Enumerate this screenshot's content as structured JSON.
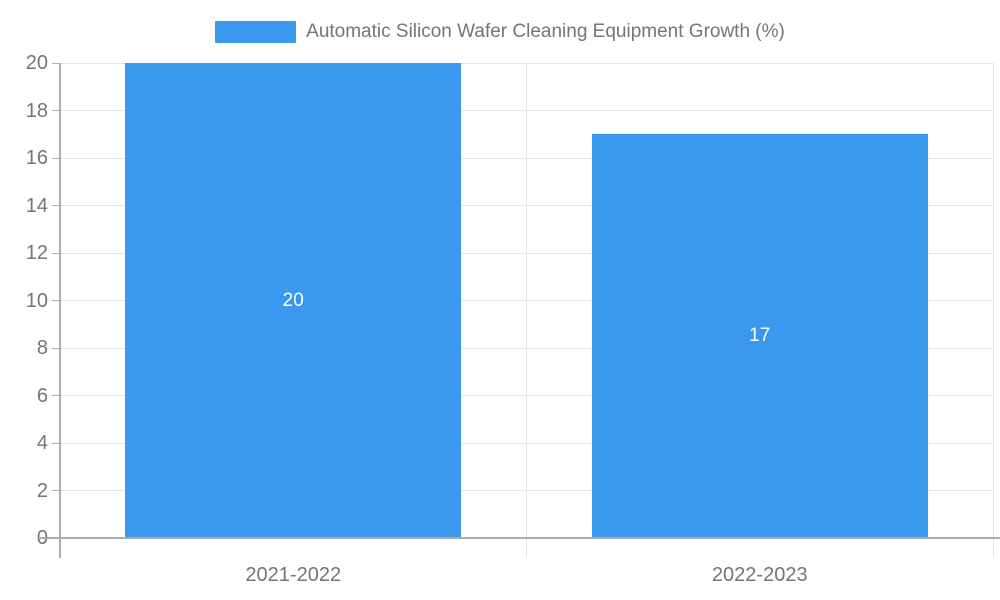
{
  "legend": {
    "label": "Automatic Silicon Wafer Cleaning Equipment Growth (%)"
  },
  "chart_data": {
    "type": "bar",
    "title": "Automatic Silicon Wafer Cleaning Equipment Growth (%)",
    "categories": [
      "2021-2022",
      "2022-2023"
    ],
    "values": [
      20,
      17
    ],
    "xlabel": "",
    "ylabel": "",
    "ylim": [
      0,
      20
    ],
    "y_ticks": [
      0,
      2,
      4,
      6,
      8,
      10,
      12,
      14,
      16,
      18,
      20
    ],
    "grid": true,
    "legend_position": "top",
    "bar_label_color": "#ffffff"
  },
  "colors": {
    "bar": "#3a99ee",
    "grid": "#e6e6e6",
    "axis": "#ababab",
    "tick": "#b3b3b3",
    "tick_label": "#757575",
    "value_label": "#ffffff",
    "background": "#ffffff"
  }
}
